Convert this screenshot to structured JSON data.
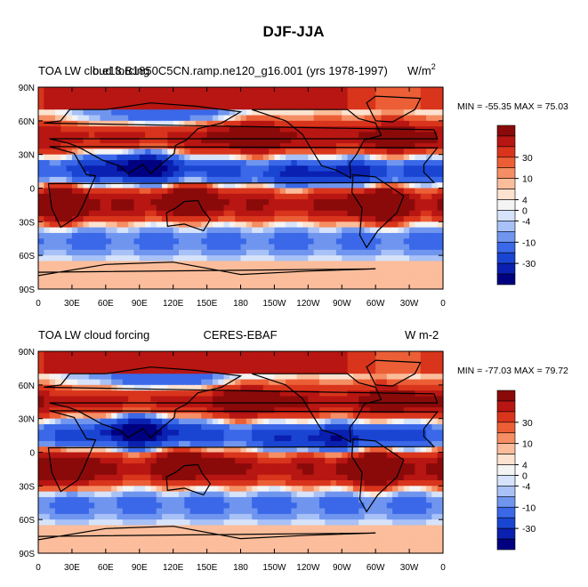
{
  "figure": {
    "title": "DJF-JJA"
  },
  "colors": {
    "levels": [
      "#000080",
      "#0a20b0",
      "#1a45d2",
      "#3a68e8",
      "#6f95ef",
      "#a8c1f6",
      "#d6e3fb",
      "#f4f4f4",
      "#fde2cf",
      "#fbbd9b",
      "#f58e64",
      "#ec5f36",
      "#d9341c",
      "#b81612",
      "#8a0a0a"
    ],
    "land_outline": "#000000"
  },
  "chart_data": [
    {
      "type": "heatmap",
      "title_left": "TOA LW cloud forcing",
      "title_center": "b.e13.B1850C5CN.ramp.ne120_g16.001 (yrs 1978-1997)",
      "units": "W/m",
      "units_exp": "2",
      "stats": "MIN = -55.35 MAX =  75.03",
      "min": -55.35,
      "max": 75.03,
      "xlabels": [
        "0",
        "30E",
        "60E",
        "90E",
        "120E",
        "150E",
        "180",
        "150W",
        "120W",
        "90W",
        "60W",
        "30W",
        "0"
      ],
      "ylabels": [
        "90N",
        "60N",
        "30N",
        "0",
        "30S",
        "60S",
        "90S"
      ],
      "xlim": [
        0,
        360
      ],
      "ylim": [
        -90,
        90
      ],
      "colorbar_labels": [
        "30",
        "10",
        "4",
        "0",
        "-4",
        "-10",
        "-30"
      ],
      "contour_levels": [
        -40,
        -30,
        -20,
        -10,
        -6,
        -4,
        -2,
        0,
        2,
        4,
        6,
        10,
        20,
        30,
        40
      ]
    },
    {
      "type": "heatmap",
      "title_left": "TOA LW cloud forcing",
      "title_center": "CERES-EBAF",
      "units": "W m-2",
      "units_exp": "",
      "stats": "MIN = -77.03 MAX =  79.72",
      "min": -77.03,
      "max": 79.72,
      "xlabels": [
        "0",
        "30E",
        "60E",
        "90E",
        "120E",
        "150E",
        "180",
        "150W",
        "120W",
        "90W",
        "60W",
        "30W",
        "0"
      ],
      "ylabels": [
        "90N",
        "60N",
        "30N",
        "0",
        "30S",
        "60S",
        "90S"
      ],
      "xlim": [
        0,
        360
      ],
      "ylim": [
        -90,
        90
      ],
      "colorbar_labels": [
        "30",
        "10",
        "4",
        "0",
        "-4",
        "-10",
        "-30"
      ],
      "contour_levels": [
        -40,
        -30,
        -20,
        -10,
        -6,
        -4,
        -2,
        0,
        2,
        4,
        6,
        10,
        20,
        30,
        40
      ]
    }
  ]
}
